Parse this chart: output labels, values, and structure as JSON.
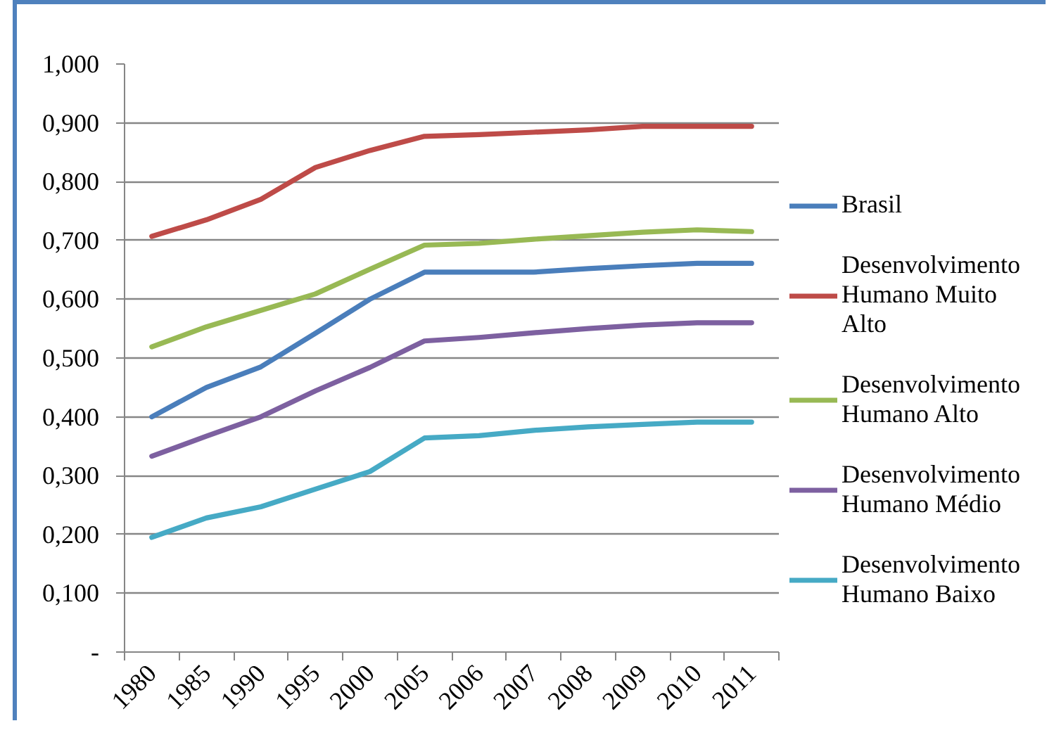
{
  "chart_data": {
    "type": "line",
    "categories": [
      "1980",
      "1985",
      "1990",
      "1995",
      "2000",
      "2005",
      "2006",
      "2007",
      "2008",
      "2009",
      "2010",
      "2011"
    ],
    "series": [
      {
        "name": "Brasil",
        "color": "#4a7ebb",
        "values": [
          0.4,
          0.45,
          0.485,
          0.542,
          0.6,
          0.646,
          0.646,
          0.646,
          0.652,
          0.657,
          0.661,
          0.661
        ]
      },
      {
        "name": "Desenvolvimento Humano Muito Alto",
        "color": "#be4b48",
        "values": [
          0.707,
          0.735,
          0.77,
          0.824,
          0.853,
          0.877,
          0.88,
          0.884,
          0.888,
          0.894,
          0.894,
          0.894
        ]
      },
      {
        "name": "Desenvolvimento Humano Alto",
        "color": "#98b954",
        "values": [
          0.519,
          0.553,
          0.581,
          0.609,
          0.651,
          0.692,
          0.695,
          0.702,
          0.708,
          0.714,
          0.718,
          0.715
        ]
      },
      {
        "name": "Desenvolvimento Humano Médio",
        "color": "#7d60a0",
        "values": [
          0.333,
          0.367,
          0.4,
          0.444,
          0.484,
          0.529,
          0.535,
          0.543,
          0.55,
          0.556,
          0.56,
          0.56
        ]
      },
      {
        "name": "Desenvolvimento Humano Baixo",
        "color": "#46aac5",
        "values": [
          0.195,
          0.228,
          0.247,
          0.277,
          0.307,
          0.364,
          0.368,
          0.377,
          0.383,
          0.387,
          0.391,
          0.391
        ]
      }
    ],
    "ylim": [
      0,
      1
    ],
    "yticks": [
      {
        "value": 0,
        "label": "-"
      },
      {
        "value": 0.1,
        "label": "0,100"
      },
      {
        "value": 0.2,
        "label": "0,200"
      },
      {
        "value": 0.3,
        "label": "0,300"
      },
      {
        "value": 0.4,
        "label": "0,400"
      },
      {
        "value": 0.5,
        "label": "0,500"
      },
      {
        "value": 0.6,
        "label": "0,600"
      },
      {
        "value": 0.7,
        "label": "0,700"
      },
      {
        "value": 0.8,
        "label": "0,800"
      },
      {
        "value": 0.9,
        "label": "0,900"
      },
      {
        "value": 1,
        "label": "1,000"
      }
    ],
    "grid": "y",
    "legend": "right"
  }
}
